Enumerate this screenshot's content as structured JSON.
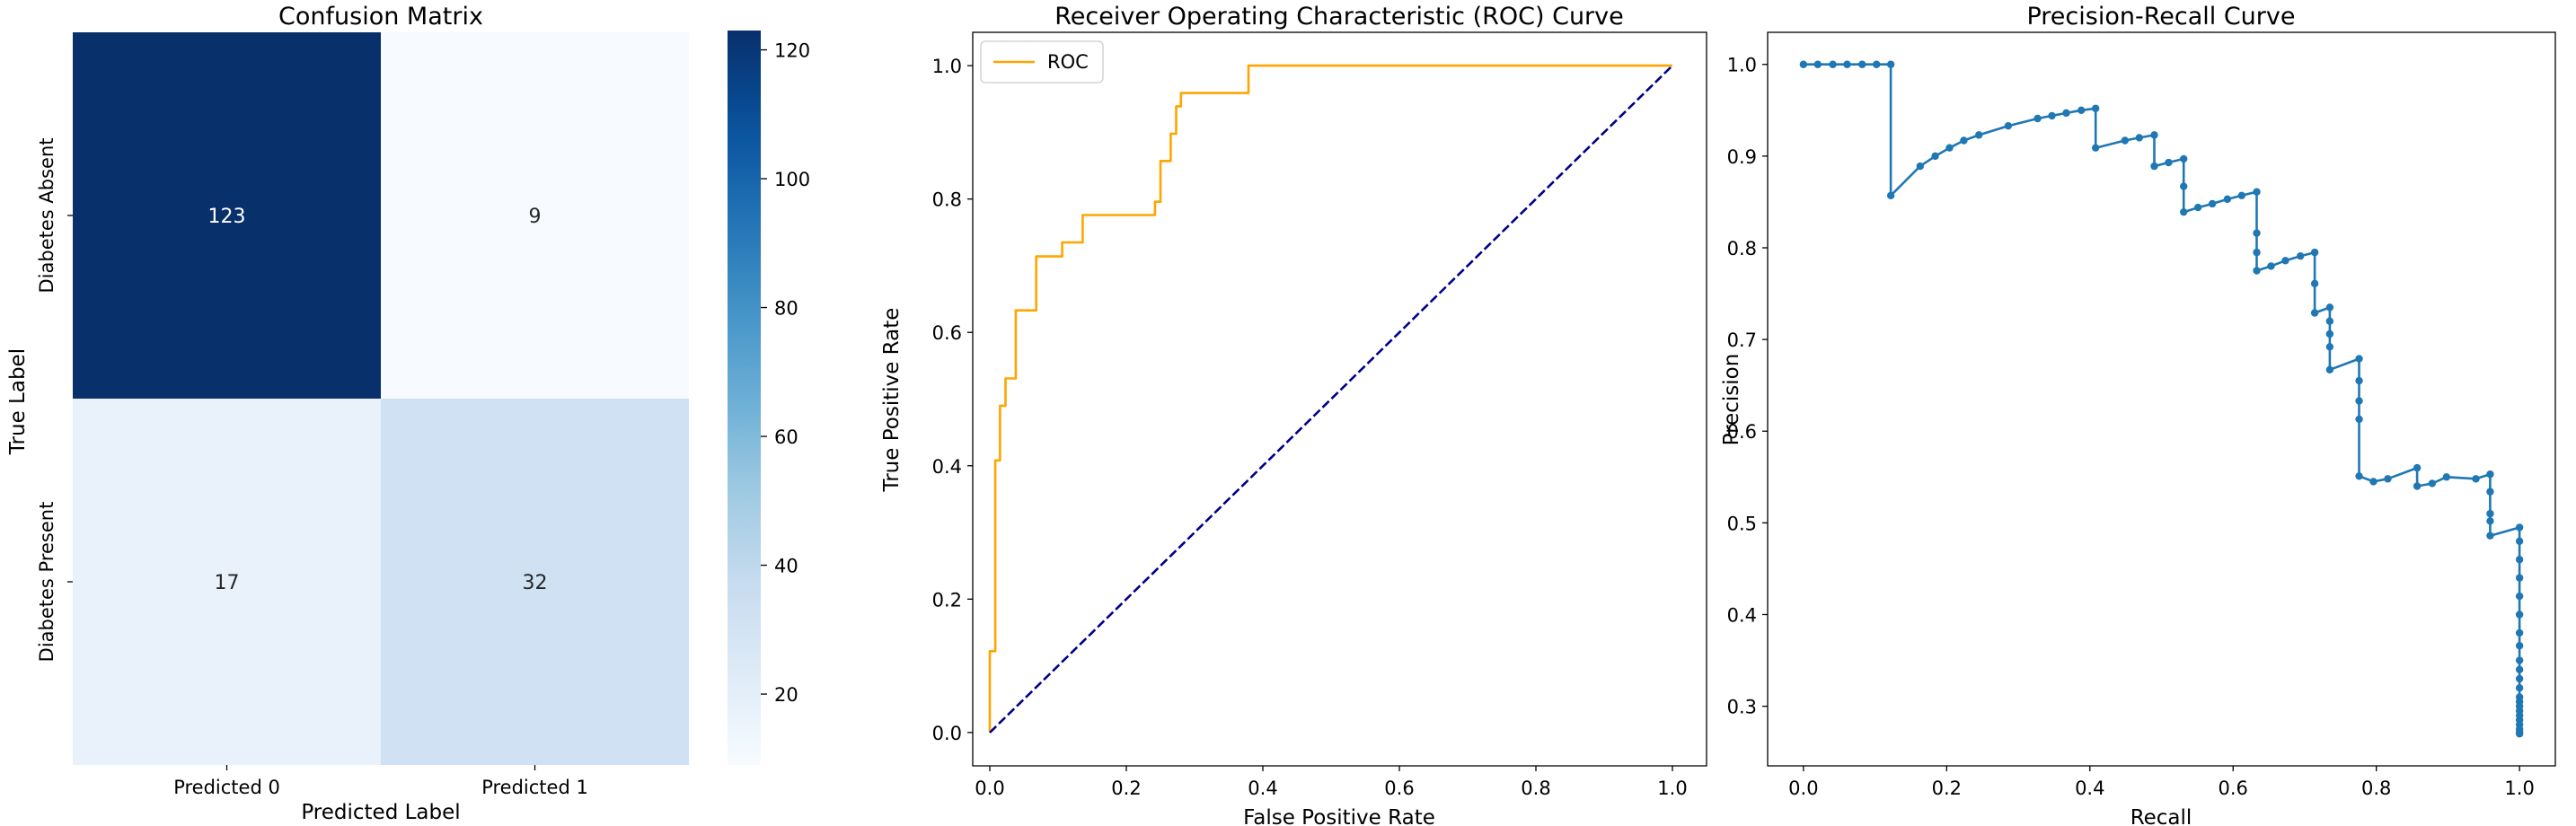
{
  "chart_data": [
    {
      "type": "heatmap",
      "title": "Confusion Matrix",
      "xlabel": "Predicted Label",
      "ylabel": "True Label",
      "x_categories": [
        "Predicted 0",
        "Predicted 1"
      ],
      "y_categories": [
        "Diabetes Absent",
        "Diabetes Present"
      ],
      "values": [
        [
          123,
          9
        ],
        [
          17,
          32
        ]
      ],
      "colormap": "Blues",
      "colorbar": {
        "range": [
          9,
          123
        ],
        "ticks": [
          20,
          40,
          60,
          80,
          100,
          120
        ]
      }
    },
    {
      "type": "line",
      "title": "Receiver Operating Characteristic (ROC) Curve",
      "xlabel": "False Positive Rate",
      "ylabel": "True Positive Rate",
      "xlim": [
        -0.025,
        1.05
      ],
      "ylim": [
        -0.05,
        1.05
      ],
      "xticks": [
        "0.0",
        "0.2",
        "0.4",
        "0.6",
        "0.8",
        "1.0"
      ],
      "yticks": [
        "0.0",
        "0.2",
        "0.4",
        "0.6",
        "0.8",
        "1.0"
      ],
      "grid": false,
      "legend": "top-left",
      "series": [
        {
          "name": "ROC",
          "color": "#ffa500",
          "style": "solid",
          "x": [
            0,
            0,
            0.008,
            0.008,
            0.015,
            0.015,
            0.023,
            0.023,
            0.03,
            0.03,
            0.038,
            0.038,
            0.053,
            0.053,
            0.068,
            0.068,
            0.083,
            0.083,
            0.106,
            0.106,
            0.136,
            0.136,
            0.242,
            0.242,
            0.25,
            0.25,
            0.265,
            0.265,
            0.273,
            0.273,
            0.28,
            0.28,
            0.288,
            0.288,
            0.379,
            0.379,
            1.0
          ],
          "y": [
            0,
            0.122,
            0.122,
            0.408,
            0.408,
            0.49,
            0.49,
            0.531,
            0.531,
            0.531,
            0.531,
            0.633,
            0.633,
            0.633,
            0.633,
            0.714,
            0.714,
            0.714,
            0.714,
            0.735,
            0.735,
            0.776,
            0.776,
            0.796,
            0.796,
            0.857,
            0.857,
            0.898,
            0.898,
            0.939,
            0.939,
            0.959,
            0.959,
            0.959,
            0.959,
            1.0,
            1.0
          ]
        },
        {
          "color": "#00008b",
          "style": "dashed",
          "x": [
            0,
            1
          ],
          "y": [
            0,
            1
          ]
        }
      ]
    },
    {
      "type": "line",
      "title": "Precision-Recall Curve",
      "xlabel": "Recall",
      "ylabel": "Precision",
      "xlim": [
        -0.05,
        1.05
      ],
      "ylim": [
        0.235,
        1.035
      ],
      "xticks": [
        "0.0",
        "0.2",
        "0.4",
        "0.6",
        "0.8",
        "1.0"
      ],
      "yticks": [
        "0.3",
        "0.4",
        "0.5",
        "0.6",
        "0.7",
        "0.8",
        "0.9",
        "1.0"
      ],
      "grid": false,
      "series": [
        {
          "color": "#1f77b4",
          "marker": "dot",
          "x": [
            0.0,
            0.02,
            0.041,
            0.061,
            0.082,
            0.102,
            0.122,
            0.122,
            0.163,
            0.184,
            0.204,
            0.224,
            0.245,
            0.286,
            0.327,
            0.347,
            0.367,
            0.388,
            0.408,
            0.408,
            0.449,
            0.469,
            0.49,
            0.49,
            0.51,
            0.531,
            0.531,
            0.531,
            0.551,
            0.571,
            0.592,
            0.612,
            0.633,
            0.633,
            0.633,
            0.633,
            0.653,
            0.673,
            0.694,
            0.714,
            0.714,
            0.714,
            0.735,
            0.735,
            0.735,
            0.735,
            0.735,
            0.776,
            0.776,
            0.776,
            0.776,
            0.776,
            0.796,
            0.816,
            0.857,
            0.857,
            0.878,
            0.898,
            0.939,
            0.959,
            0.959,
            0.959,
            0.959,
            0.959,
            1.0,
            1.0,
            1.0,
            1.0,
            1.0,
            1.0,
            1.0,
            1.0,
            1.0,
            1.0,
            1.0,
            1.0,
            1.0,
            1.0,
            1.0,
            1.0,
            1.0,
            1.0,
            1.0,
            1.0,
            1.0,
            1.0
          ],
          "y": [
            1.0,
            1.0,
            1.0,
            1.0,
            1.0,
            1.0,
            1.0,
            0.857,
            0.889,
            0.9,
            0.909,
            0.917,
            0.923,
            0.933,
            0.941,
            0.944,
            0.947,
            0.95,
            0.952,
            0.909,
            0.917,
            0.92,
            0.923,
            0.889,
            0.893,
            0.897,
            0.867,
            0.839,
            0.844,
            0.848,
            0.853,
            0.857,
            0.861,
            0.816,
            0.795,
            0.775,
            0.78,
            0.786,
            0.791,
            0.795,
            0.761,
            0.729,
            0.735,
            0.72,
            0.706,
            0.692,
            0.667,
            0.679,
            0.655,
            0.633,
            0.613,
            0.551,
            0.545,
            0.548,
            0.56,
            0.54,
            0.543,
            0.55,
            0.548,
            0.553,
            0.534,
            0.51,
            0.502,
            0.486,
            0.495,
            0.48,
            0.46,
            0.44,
            0.42,
            0.4,
            0.38,
            0.366,
            0.35,
            0.34,
            0.33,
            0.32,
            0.31,
            0.305,
            0.3,
            0.295,
            0.29,
            0.285,
            0.28,
            0.275,
            0.272,
            0.27
          ]
        }
      ]
    }
  ]
}
